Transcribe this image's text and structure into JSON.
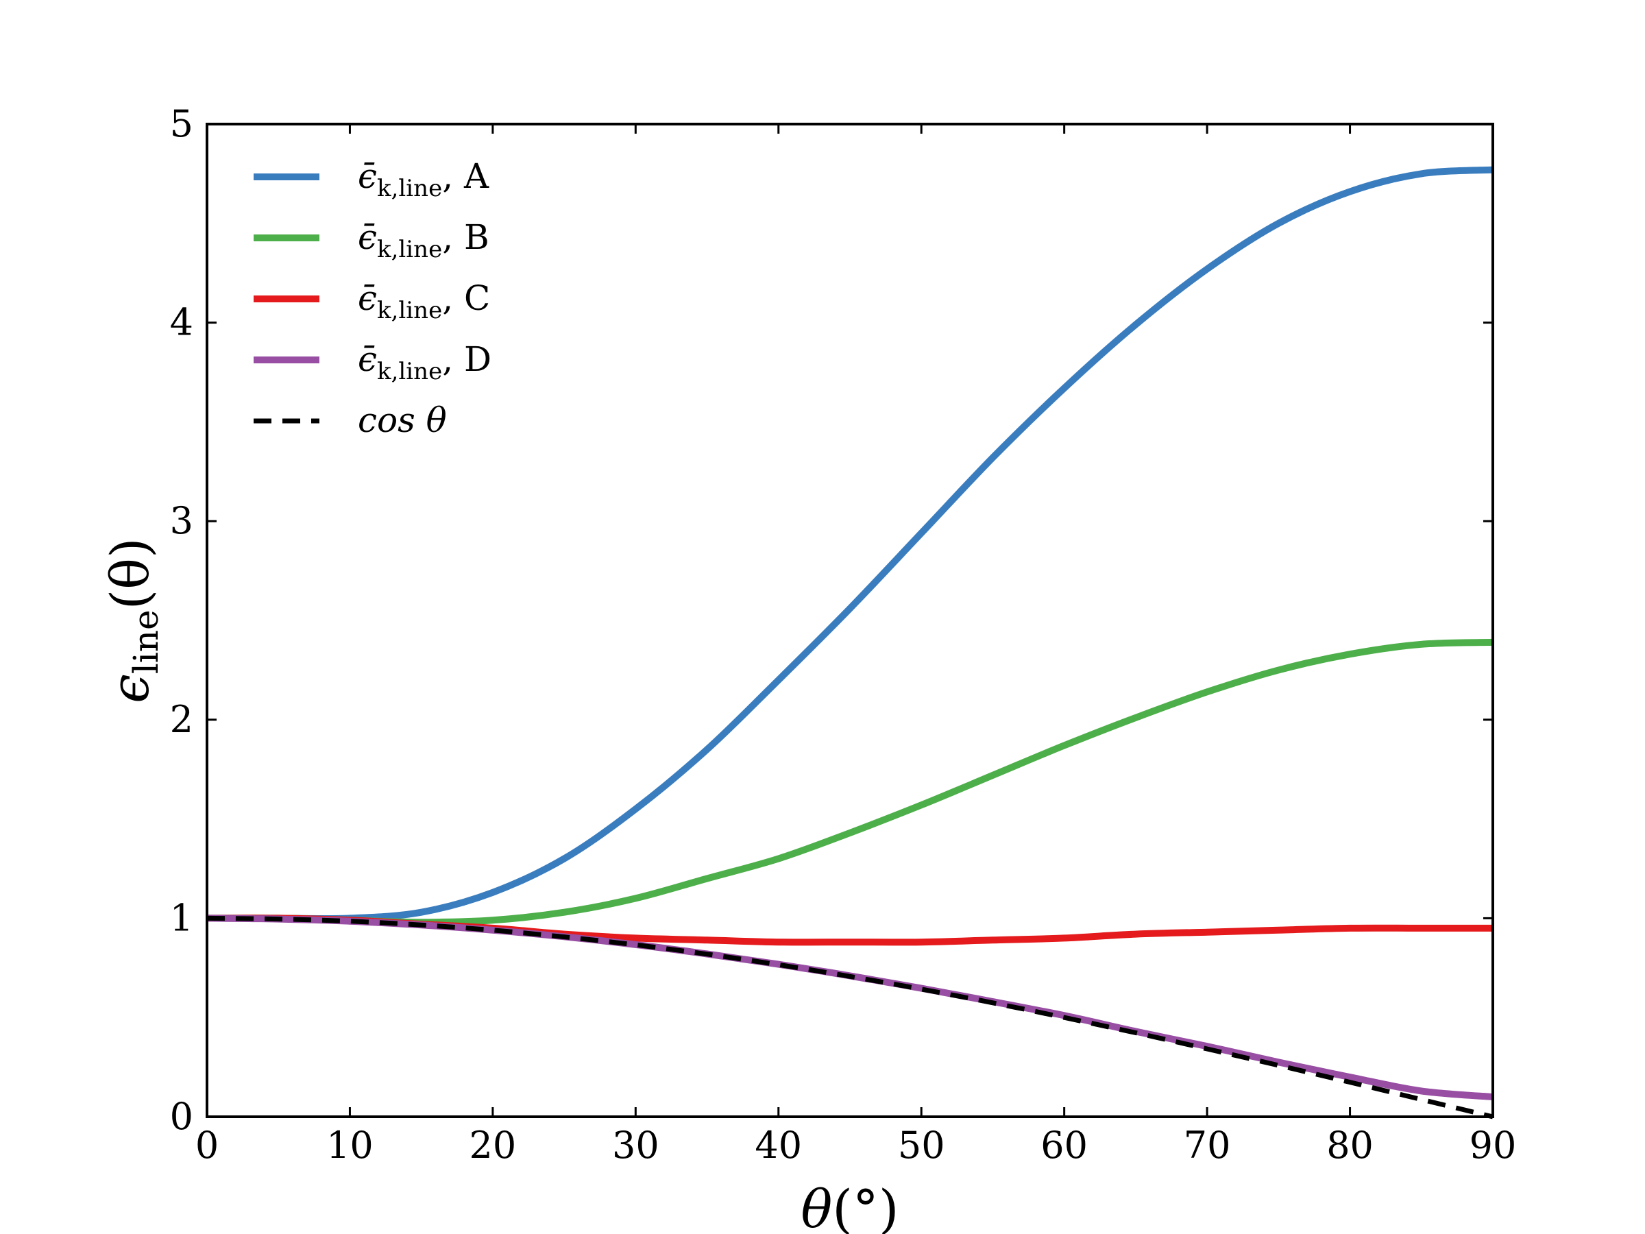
{
  "chart_data": {
    "type": "line",
    "xlabel": {
      "main": "θ",
      "rest": "(°)"
    },
    "ylabel": {
      "main": "ϵ",
      "sub": "line",
      "rest": "(θ)"
    },
    "xlim": [
      0,
      90
    ],
    "ylim": [
      0,
      5
    ],
    "xticks": [
      "0",
      "10",
      "20",
      "30",
      "40",
      "50",
      "60",
      "70",
      "80",
      "90"
    ],
    "yticks": [
      "0",
      "1",
      "2",
      "3",
      "4",
      "5"
    ],
    "grid": false,
    "legend_position": "top-left",
    "series": [
      {
        "name": "ϵ̄k,line, A",
        "legend": {
          "symbol": "ϵ̄",
          "sub": "k,line",
          "suffix": ", A"
        },
        "color": "#3a7dbf",
        "dash": "solid",
        "x": [
          0,
          5,
          10,
          15,
          20,
          25,
          30,
          35,
          40,
          45,
          50,
          55,
          60,
          65,
          70,
          75,
          80,
          85,
          90
        ],
        "y": [
          1.0,
          1.0,
          1.0,
          1.03,
          1.13,
          1.3,
          1.55,
          1.85,
          2.2,
          2.56,
          2.94,
          3.32,
          3.67,
          3.99,
          4.27,
          4.5,
          4.66,
          4.75,
          4.77
        ]
      },
      {
        "name": "ϵ̄k,line, B",
        "legend": {
          "symbol": "ϵ̄",
          "sub": "k,line",
          "suffix": ", B"
        },
        "color": "#4daf4a",
        "dash": "solid",
        "x": [
          0,
          5,
          10,
          15,
          20,
          25,
          30,
          35,
          40,
          45,
          50,
          55,
          60,
          65,
          70,
          75,
          80,
          85,
          90
        ],
        "y": [
          1.0,
          1.0,
          0.99,
          0.98,
          0.99,
          1.03,
          1.1,
          1.2,
          1.3,
          1.43,
          1.57,
          1.72,
          1.87,
          2.01,
          2.14,
          2.25,
          2.33,
          2.38,
          2.39
        ]
      },
      {
        "name": "ϵ̄k,line, C",
        "legend": {
          "symbol": "ϵ̄",
          "sub": "k,line",
          "suffix": ", C"
        },
        "color": "#e41a1c",
        "dash": "solid",
        "x": [
          0,
          5,
          10,
          15,
          20,
          25,
          30,
          35,
          40,
          45,
          50,
          55,
          60,
          65,
          70,
          75,
          80,
          85,
          90
        ],
        "y": [
          1.0,
          1.0,
          0.99,
          0.97,
          0.95,
          0.92,
          0.9,
          0.89,
          0.88,
          0.88,
          0.88,
          0.89,
          0.9,
          0.92,
          0.93,
          0.94,
          0.95,
          0.95,
          0.95
        ]
      },
      {
        "name": "ϵ̄k,line, D",
        "legend": {
          "symbol": "ϵ̄",
          "sub": "k,line",
          "suffix": ", D"
        },
        "color": "#984ea3",
        "dash": "solid",
        "x": [
          0,
          5,
          10,
          15,
          20,
          25,
          30,
          35,
          40,
          45,
          50,
          55,
          60,
          65,
          70,
          75,
          80,
          85,
          90
        ],
        "y": [
          1.0,
          0.996,
          0.985,
          0.966,
          0.94,
          0.907,
          0.867,
          0.82,
          0.768,
          0.71,
          0.647,
          0.58,
          0.51,
          0.43,
          0.355,
          0.275,
          0.2,
          0.13,
          0.1
        ]
      },
      {
        "name": "cos θ",
        "legend": {
          "symbol": "cos θ",
          "sub": "",
          "suffix": ""
        },
        "color": "#000000",
        "dash": "dashed",
        "x": [
          0,
          5,
          10,
          15,
          20,
          25,
          30,
          35,
          40,
          45,
          50,
          55,
          60,
          65,
          70,
          75,
          80,
          85,
          90
        ],
        "y": [
          1.0,
          0.996,
          0.985,
          0.966,
          0.94,
          0.906,
          0.866,
          0.819,
          0.766,
          0.707,
          0.643,
          0.574,
          0.5,
          0.423,
          0.342,
          0.259,
          0.174,
          0.087,
          0.0
        ]
      }
    ]
  }
}
